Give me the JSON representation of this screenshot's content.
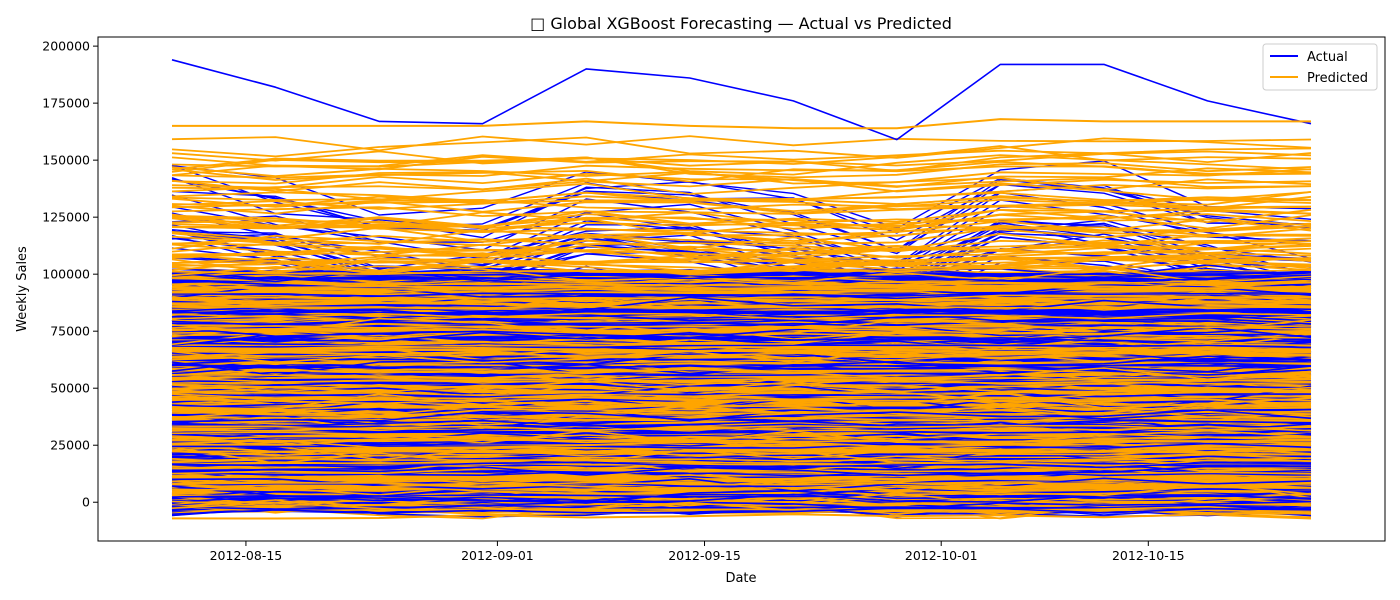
{
  "chart_data": {
    "type": "line",
    "title": "□ Global XGBoost Forecasting — Actual vs Predicted",
    "xlabel": "Date",
    "ylabel": "Weekly Sales",
    "x": [
      "2012-08-10",
      "2012-08-17",
      "2012-08-24",
      "2012-08-31",
      "2012-09-07",
      "2012-09-14",
      "2012-09-21",
      "2012-09-28",
      "2012-10-05",
      "2012-10-12",
      "2012-10-19",
      "2012-10-26"
    ],
    "x_ticks": [
      "2012-08-15",
      "2012-09-01",
      "2012-09-15",
      "2012-10-01",
      "2012-10-15"
    ],
    "xlim": [
      "2012-08-05",
      "2012-10-31"
    ],
    "y_ticks": [
      0,
      25000,
      50000,
      75000,
      100000,
      125000,
      150000,
      175000,
      200000
    ],
    "ylim": [
      -17000,
      204000
    ],
    "grid": false,
    "legend_position": "top-right",
    "series": [
      {
        "name": "Actual",
        "color": "#0000ff",
        "values": [
          194000,
          182000,
          167000,
          166000,
          190000,
          186000,
          176000,
          159000,
          192000,
          192000,
          176000,
          166000
        ]
      },
      {
        "name": "Predicted",
        "color": "#ffa500",
        "values": [
          165000,
          165000,
          165000,
          165000,
          167000,
          165000,
          164000,
          164000,
          168000,
          167000,
          167000,
          167000
        ]
      }
    ]
  }
}
